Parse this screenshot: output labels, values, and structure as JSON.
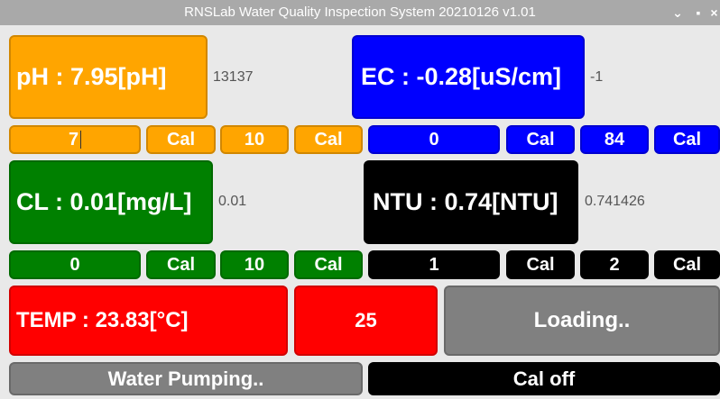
{
  "window": {
    "title": "RNSLab Water Quality Inspection System 20210126 v1.01",
    "minimize_glyph": "⌄",
    "maximize_glyph": "▪",
    "close_glyph": "×"
  },
  "ph": {
    "reading": "pH : 7.95[pH]",
    "raw": "13137",
    "cal_low_value": "7",
    "cal_low_label": "Cal",
    "cal_high_value": "10",
    "cal_high_label": "Cal",
    "color": "#ffa500"
  },
  "ec": {
    "reading": "EC : -0.28[uS/cm]",
    "raw": "-1",
    "cal_low_value": "0",
    "cal_low_label": "Cal",
    "cal_high_value": "84",
    "cal_high_label": "Cal",
    "color": "#0000ff"
  },
  "cl": {
    "reading": "CL : 0.01[mg/L]",
    "raw": "0.01",
    "cal_low_value": "0",
    "cal_low_label": "Cal",
    "cal_high_value": "10",
    "cal_high_label": "Cal",
    "color": "#008000"
  },
  "ntu": {
    "reading": "NTU : 0.74[NTU]",
    "raw": "0.741426",
    "cal_low_value": "1",
    "cal_low_label": "Cal",
    "cal_high_value": "2",
    "cal_high_label": "Cal",
    "color": "#000000"
  },
  "temp": {
    "reading": "TEMP : 23.83[°C]",
    "set_value": "25",
    "color": "#ff0000"
  },
  "status": {
    "loading": "Loading..",
    "pump": "Water Pumping..",
    "cal_state": "Cal off",
    "gray_color": "#808080"
  }
}
